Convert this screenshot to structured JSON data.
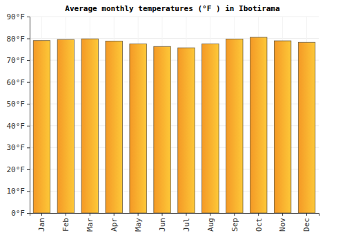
{
  "chart_data": {
    "type": "bar",
    "title": "Average monthly temperatures (°F ) in Ibotirama",
    "categories": [
      "Jan",
      "Feb",
      "Mar",
      "Apr",
      "May",
      "Jun",
      "Jul",
      "Aug",
      "Sep",
      "Oct",
      "Nov",
      "Dec"
    ],
    "values": [
      79,
      79.5,
      79.8,
      78.8,
      77.5,
      76.3,
      75.7,
      77.5,
      79.7,
      80.5,
      78.9,
      78.2
    ],
    "color": "#fbb034",
    "ylim": [
      0,
      90
    ],
    "yticks": [
      {
        "value": 0,
        "label": "0°F"
      },
      {
        "value": 10,
        "label": "10°F"
      },
      {
        "value": 20,
        "label": "20°F"
      },
      {
        "value": 30,
        "label": "30°F"
      },
      {
        "value": 40,
        "label": "40°F"
      },
      {
        "value": 50,
        "label": "50°F"
      },
      {
        "value": 60,
        "label": "60°F"
      },
      {
        "value": 70,
        "label": "70°F"
      },
      {
        "value": 80,
        "label": "80°F"
      },
      {
        "value": 90,
        "label": "90°F"
      }
    ],
    "grid": true
  }
}
